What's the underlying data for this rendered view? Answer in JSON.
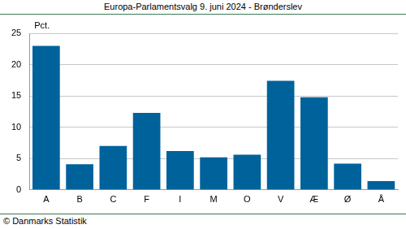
{
  "chart_data": {
    "type": "bar",
    "title": "Europa-Parlamentsvalg 9. juni 2024 - Brønderslev",
    "ylabel": "Pct.",
    "source": "© Danmarks Statistik",
    "categories": [
      "A",
      "B",
      "C",
      "F",
      "I",
      "M",
      "O",
      "V",
      "Æ",
      "Ø",
      "Å"
    ],
    "values": [
      23.0,
      4.1,
      7.0,
      12.3,
      6.2,
      5.2,
      5.6,
      17.4,
      14.8,
      4.2,
      1.4
    ],
    "color": "#00629b",
    "ylim": [
      0,
      25
    ],
    "yticks": [
      0,
      5,
      10,
      15,
      20,
      25
    ],
    "grid": true
  }
}
